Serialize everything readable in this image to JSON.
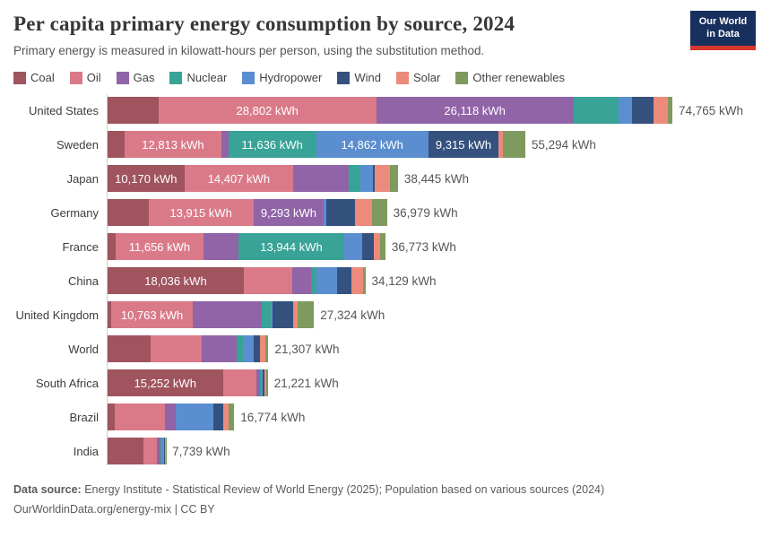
{
  "title": "Per capita primary energy consumption by source, 2024",
  "subtitle": "Primary energy is measured in kilowatt-hours per person, using the substitution method.",
  "logo": {
    "line1": "Our World",
    "line2": "in Data",
    "bg_color": "#18305e",
    "accent_color": "#d7382d"
  },
  "legend": [
    {
      "source": "Coal",
      "color": "#a0545e"
    },
    {
      "source": "Oil",
      "color": "#da7a89"
    },
    {
      "source": "Gas",
      "color": "#9064a7"
    },
    {
      "source": "Nuclear",
      "color": "#38a396"
    },
    {
      "source": "Hydropower",
      "color": "#5a8ed0"
    },
    {
      "source": "Wind",
      "color": "#35517e"
    },
    {
      "source": "Solar",
      "color": "#ec8b7c"
    },
    {
      "source": "Other renewables",
      "color": "#7f9a5e"
    }
  ],
  "chart_data": {
    "type": "bar",
    "variant": "horizontal-stacked",
    "unit": "kWh",
    "grid": false,
    "legend_position": "top",
    "xlim": [
      0,
      76000
    ],
    "sources_order": [
      "Coal",
      "Oil",
      "Gas",
      "Nuclear",
      "Hydropower",
      "Wind",
      "Solar",
      "Other renewables"
    ],
    "categories": [
      "United States",
      "Sweden",
      "Japan",
      "Germany",
      "France",
      "China",
      "United Kingdom",
      "World",
      "South Africa",
      "Brazil",
      "India"
    ],
    "rows": [
      {
        "label": "United States",
        "total": 74765,
        "total_label": "74,765 kWh",
        "segments": [
          {
            "source": "Coal",
            "value": 6750
          },
          {
            "source": "Oil",
            "value": 28802,
            "label": "28,802 kWh"
          },
          {
            "source": "Gas",
            "value": 26118,
            "label": "26,118 kWh"
          },
          {
            "source": "Nuclear",
            "value": 6000
          },
          {
            "source": "Hydropower",
            "value": 1700
          },
          {
            "source": "Wind",
            "value": 2900
          },
          {
            "source": "Solar",
            "value": 1950
          },
          {
            "source": "Other renewables",
            "value": 545
          }
        ]
      },
      {
        "label": "Sweden",
        "total": 55294,
        "total_label": "55,294 kWh",
        "segments": [
          {
            "source": "Coal",
            "value": 2250
          },
          {
            "source": "Oil",
            "value": 12813,
            "label": "12,813 kWh"
          },
          {
            "source": "Gas",
            "value": 900
          },
          {
            "source": "Nuclear",
            "value": 11636,
            "label": "11,636 kWh"
          },
          {
            "source": "Hydropower",
            "value": 14862,
            "label": "14,862 kWh"
          },
          {
            "source": "Wind",
            "value": 9315,
            "label": "9,315 kWh"
          },
          {
            "source": "Solar",
            "value": 550
          },
          {
            "source": "Other renewables",
            "value": 2968
          }
        ]
      },
      {
        "label": "Japan",
        "total": 38445,
        "total_label": "38,445 kWh",
        "segments": [
          {
            "source": "Coal",
            "value": 10170,
            "label": "10,170 kWh"
          },
          {
            "source": "Oil",
            "value": 14407,
            "label": "14,407 kWh"
          },
          {
            "source": "Gas",
            "value": 7300
          },
          {
            "source": "Nuclear",
            "value": 1560
          },
          {
            "source": "Hydropower",
            "value": 1660
          },
          {
            "source": "Wind",
            "value": 250
          },
          {
            "source": "Solar",
            "value": 2000
          },
          {
            "source": "Other renewables",
            "value": 1098
          }
        ]
      },
      {
        "label": "Germany",
        "total": 36979,
        "total_label": "36,979 kWh",
        "segments": [
          {
            "source": "Coal",
            "value": 5400
          },
          {
            "source": "Oil",
            "value": 13915,
            "label": "13,915 kWh"
          },
          {
            "source": "Gas",
            "value": 9293,
            "label": "9,293 kWh"
          },
          {
            "source": "Hydropower",
            "value": 400
          },
          {
            "source": "Wind",
            "value": 3800
          },
          {
            "source": "Solar",
            "value": 2200
          },
          {
            "source": "Other renewables",
            "value": 1971
          }
        ]
      },
      {
        "label": "France",
        "total": 36773,
        "total_label": "36,773 kWh",
        "segments": [
          {
            "source": "Coal",
            "value": 1050
          },
          {
            "source": "Oil",
            "value": 11656,
            "label": "11,656 kWh"
          },
          {
            "source": "Gas",
            "value": 4650
          },
          {
            "source": "Nuclear",
            "value": 13944,
            "label": "13,944 kWh"
          },
          {
            "source": "Hydropower",
            "value": 2350
          },
          {
            "source": "Wind",
            "value": 1600
          },
          {
            "source": "Solar",
            "value": 800
          },
          {
            "source": "Other renewables",
            "value": 723
          }
        ]
      },
      {
        "label": "China",
        "total": 34129,
        "total_label": "34,129 kWh",
        "segments": [
          {
            "source": "Coal",
            "value": 18036,
            "label": "18,036 kWh"
          },
          {
            "source": "Oil",
            "value": 6450
          },
          {
            "source": "Gas",
            "value": 2500
          },
          {
            "source": "Nuclear",
            "value": 660
          },
          {
            "source": "Hydropower",
            "value": 2780
          },
          {
            "source": "Wind",
            "value": 1900
          },
          {
            "source": "Solar",
            "value": 1500
          },
          {
            "source": "Other renewables",
            "value": 303
          }
        ]
      },
      {
        "label": "United Kingdom",
        "total": 27324,
        "total_label": "27,324 kWh",
        "segments": [
          {
            "source": "Coal",
            "value": 500
          },
          {
            "source": "Oil",
            "value": 10763,
            "label": "10,763 kWh"
          },
          {
            "source": "Gas",
            "value": 9200
          },
          {
            "source": "Nuclear",
            "value": 1150
          },
          {
            "source": "Hydropower",
            "value": 250
          },
          {
            "source": "Wind",
            "value": 2700
          },
          {
            "source": "Solar",
            "value": 550
          },
          {
            "source": "Other renewables",
            "value": 2211
          }
        ]
      },
      {
        "label": "World",
        "total": 21307,
        "total_label": "21,307 kWh",
        "segments": [
          {
            "source": "Coal",
            "value": 5750
          },
          {
            "source": "Oil",
            "value": 6750
          },
          {
            "source": "Gas",
            "value": 4650
          },
          {
            "source": "Nuclear",
            "value": 830
          },
          {
            "source": "Hydropower",
            "value": 1400
          },
          {
            "source": "Wind",
            "value": 780
          },
          {
            "source": "Solar",
            "value": 680
          },
          {
            "source": "Other renewables",
            "value": 467
          }
        ]
      },
      {
        "label": "South Africa",
        "total": 21221,
        "total_label": "21,221 kWh",
        "segments": [
          {
            "source": "Coal",
            "value": 15252,
            "label": "15,252 kWh"
          },
          {
            "source": "Oil",
            "value": 4450
          },
          {
            "source": "Gas",
            "value": 450
          },
          {
            "source": "Nuclear",
            "value": 270
          },
          {
            "source": "Hydropower",
            "value": 100
          },
          {
            "source": "Wind",
            "value": 260
          },
          {
            "source": "Solar",
            "value": 250
          },
          {
            "source": "Other renewables",
            "value": 189
          }
        ]
      },
      {
        "label": "Brazil",
        "total": 16774,
        "total_label": "16,774 kWh",
        "segments": [
          {
            "source": "Coal",
            "value": 900
          },
          {
            "source": "Oil",
            "value": 6750
          },
          {
            "source": "Gas",
            "value": 1330
          },
          {
            "source": "Nuclear",
            "value": 100
          },
          {
            "source": "Hydropower",
            "value": 4950
          },
          {
            "source": "Wind",
            "value": 1280
          },
          {
            "source": "Solar",
            "value": 660
          },
          {
            "source": "Other renewables",
            "value": 804
          }
        ]
      },
      {
        "label": "India",
        "total": 7739,
        "total_label": "7,739 kWh",
        "segments": [
          {
            "source": "Coal",
            "value": 4700
          },
          {
            "source": "Oil",
            "value": 1850
          },
          {
            "source": "Gas",
            "value": 400
          },
          {
            "source": "Nuclear",
            "value": 120
          },
          {
            "source": "Hydropower",
            "value": 400
          },
          {
            "source": "Wind",
            "value": 130
          },
          {
            "source": "Solar",
            "value": 90
          },
          {
            "source": "Other renewables",
            "value": 49
          }
        ]
      }
    ]
  },
  "footer": {
    "source_prefix": "Data source:",
    "source_text": " Energy Institute - Statistical Review of World Energy (2025); Population based on various sources (2024)",
    "license_line": "OurWorldinData.org/energy-mix | CC BY"
  }
}
